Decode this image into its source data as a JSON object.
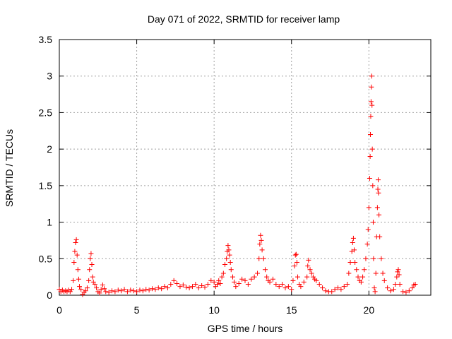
{
  "chart_data": {
    "type": "scatter",
    "title": "Day 071 of 2022, SRMTID for receiver lamp",
    "xlabel": "GPS time / hours",
    "ylabel": "SRMTID / TECUs",
    "xlim": [
      0,
      24
    ],
    "ylim": [
      0,
      3.5
    ],
    "xticks": [
      0,
      5,
      10,
      15,
      20
    ],
    "xtick_labels": [
      "0",
      "5",
      "10",
      "15",
      "20"
    ],
    "yticks": [
      0,
      0.5,
      1,
      1.5,
      2,
      2.5,
      3,
      3.5
    ],
    "ytick_labels": [
      "0",
      "0.5",
      "1",
      "1.5",
      "2",
      "2.5",
      "3",
      "3.5"
    ],
    "grid": true,
    "marker": "+",
    "series": [
      {
        "name": "SRMTID",
        "color": "#ff0000",
        "points": [
          [
            0.0,
            0.08
          ],
          [
            0.1,
            0.05
          ],
          [
            0.2,
            0.07
          ],
          [
            0.3,
            0.05
          ],
          [
            0.4,
            0.06
          ],
          [
            0.5,
            0.05
          ],
          [
            0.6,
            0.07
          ],
          [
            0.7,
            0.05
          ],
          [
            0.8,
            0.08
          ],
          [
            0.9,
            0.2
          ],
          [
            0.95,
            0.45
          ],
          [
            1.0,
            0.6
          ],
          [
            1.05,
            0.72
          ],
          [
            1.1,
            0.76
          ],
          [
            1.15,
            0.55
          ],
          [
            1.2,
            0.35
          ],
          [
            1.25,
            0.22
          ],
          [
            1.3,
            0.12
          ],
          [
            1.4,
            0.08
          ],
          [
            1.5,
            0.01
          ],
          [
            1.6,
            0.04
          ],
          [
            1.7,
            0.06
          ],
          [
            1.8,
            0.1
          ],
          [
            1.9,
            0.2
          ],
          [
            1.95,
            0.35
          ],
          [
            2.0,
            0.5
          ],
          [
            2.05,
            0.57
          ],
          [
            2.1,
            0.42
          ],
          [
            2.15,
            0.25
          ],
          [
            2.2,
            0.18
          ],
          [
            2.3,
            0.15
          ],
          [
            2.4,
            0.1
          ],
          [
            2.5,
            0.05
          ],
          [
            2.6,
            0.03
          ],
          [
            2.7,
            0.08
          ],
          [
            2.8,
            0.14
          ],
          [
            2.9,
            0.09
          ],
          [
            3.0,
            0.05
          ],
          [
            3.2,
            0.04
          ],
          [
            3.4,
            0.06
          ],
          [
            3.6,
            0.05
          ],
          [
            3.8,
            0.07
          ],
          [
            4.0,
            0.06
          ],
          [
            4.2,
            0.08
          ],
          [
            4.4,
            0.05
          ],
          [
            4.6,
            0.07
          ],
          [
            4.8,
            0.06
          ],
          [
            5.0,
            0.05
          ],
          [
            5.2,
            0.07
          ],
          [
            5.4,
            0.06
          ],
          [
            5.6,
            0.08
          ],
          [
            5.8,
            0.07
          ],
          [
            6.0,
            0.09
          ],
          [
            6.2,
            0.08
          ],
          [
            6.4,
            0.1
          ],
          [
            6.6,
            0.09
          ],
          [
            6.8,
            0.12
          ],
          [
            7.0,
            0.1
          ],
          [
            7.2,
            0.15
          ],
          [
            7.4,
            0.2
          ],
          [
            7.6,
            0.16
          ],
          [
            7.8,
            0.12
          ],
          [
            8.0,
            0.14
          ],
          [
            8.2,
            0.11
          ],
          [
            8.4,
            0.1
          ],
          [
            8.6,
            0.12
          ],
          [
            8.8,
            0.15
          ],
          [
            9.0,
            0.1
          ],
          [
            9.2,
            0.13
          ],
          [
            9.4,
            0.11
          ],
          [
            9.6,
            0.15
          ],
          [
            9.8,
            0.2
          ],
          [
            10.0,
            0.18
          ],
          [
            10.1,
            0.12
          ],
          [
            10.2,
            0.15
          ],
          [
            10.3,
            0.2
          ],
          [
            10.4,
            0.16
          ],
          [
            10.5,
            0.25
          ],
          [
            10.6,
            0.3
          ],
          [
            10.7,
            0.42
          ],
          [
            10.8,
            0.5
          ],
          [
            10.85,
            0.6
          ],
          [
            10.9,
            0.68
          ],
          [
            10.95,
            0.62
          ],
          [
            11.0,
            0.55
          ],
          [
            11.05,
            0.45
          ],
          [
            11.1,
            0.35
          ],
          [
            11.2,
            0.25
          ],
          [
            11.3,
            0.18
          ],
          [
            11.4,
            0.12
          ],
          [
            11.6,
            0.16
          ],
          [
            11.8,
            0.22
          ],
          [
            12.0,
            0.2
          ],
          [
            12.2,
            0.15
          ],
          [
            12.4,
            0.22
          ],
          [
            12.6,
            0.25
          ],
          [
            12.8,
            0.3
          ],
          [
            12.9,
            0.5
          ],
          [
            12.95,
            0.7
          ],
          [
            13.0,
            0.82
          ],
          [
            13.05,
            0.75
          ],
          [
            13.1,
            0.62
          ],
          [
            13.2,
            0.5
          ],
          [
            13.3,
            0.35
          ],
          [
            13.4,
            0.25
          ],
          [
            13.5,
            0.2
          ],
          [
            13.6,
            0.18
          ],
          [
            13.8,
            0.22
          ],
          [
            14.0,
            0.15
          ],
          [
            14.2,
            0.12
          ],
          [
            14.4,
            0.15
          ],
          [
            14.6,
            0.1
          ],
          [
            14.8,
            0.12
          ],
          [
            15.0,
            0.08
          ],
          [
            15.1,
            0.2
          ],
          [
            15.2,
            0.4
          ],
          [
            15.25,
            0.55
          ],
          [
            15.3,
            0.56
          ],
          [
            15.35,
            0.45
          ],
          [
            15.4,
            0.25
          ],
          [
            15.5,
            0.15
          ],
          [
            15.6,
            0.12
          ],
          [
            15.8,
            0.18
          ],
          [
            16.0,
            0.25
          ],
          [
            16.05,
            0.4
          ],
          [
            16.1,
            0.48
          ],
          [
            16.2,
            0.35
          ],
          [
            16.3,
            0.3
          ],
          [
            16.4,
            0.25
          ],
          [
            16.5,
            0.22
          ],
          [
            16.6,
            0.2
          ],
          [
            16.8,
            0.15
          ],
          [
            17.0,
            0.1
          ],
          [
            17.2,
            0.06
          ],
          [
            17.4,
            0.05
          ],
          [
            17.6,
            0.05
          ],
          [
            17.8,
            0.08
          ],
          [
            18.0,
            0.1
          ],
          [
            18.2,
            0.08
          ],
          [
            18.4,
            0.12
          ],
          [
            18.6,
            0.15
          ],
          [
            18.7,
            0.3
          ],
          [
            18.8,
            0.45
          ],
          [
            18.9,
            0.6
          ],
          [
            18.95,
            0.72
          ],
          [
            19.0,
            0.78
          ],
          [
            19.05,
            0.62
          ],
          [
            19.1,
            0.45
          ],
          [
            19.2,
            0.35
          ],
          [
            19.3,
            0.25
          ],
          [
            19.4,
            0.2
          ],
          [
            19.5,
            0.18
          ],
          [
            19.6,
            0.25
          ],
          [
            19.7,
            0.35
          ],
          [
            19.8,
            0.5
          ],
          [
            19.9,
            0.7
          ],
          [
            19.95,
            0.9
          ],
          [
            20.0,
            1.2
          ],
          [
            20.05,
            1.6
          ],
          [
            20.08,
            1.9
          ],
          [
            20.1,
            2.2
          ],
          [
            20.12,
            2.45
          ],
          [
            20.14,
            2.65
          ],
          [
            20.16,
            2.85
          ],
          [
            20.18,
            3.0
          ],
          [
            20.2,
            2.6
          ],
          [
            20.22,
            2.0
          ],
          [
            20.25,
            1.5
          ],
          [
            20.28,
            1.0
          ],
          [
            20.3,
            0.5
          ],
          [
            20.35,
            0.1
          ],
          [
            20.4,
            0.05
          ],
          [
            20.45,
            0.3
          ],
          [
            20.5,
            0.8
          ],
          [
            20.55,
            1.2
          ],
          [
            20.58,
            1.45
          ],
          [
            20.6,
            1.58
          ],
          [
            20.62,
            1.4
          ],
          [
            20.65,
            1.1
          ],
          [
            20.7,
            0.8
          ],
          [
            20.8,
            0.5
          ],
          [
            20.9,
            0.3
          ],
          [
            21.0,
            0.2
          ],
          [
            21.2,
            0.1
          ],
          [
            21.4,
            0.06
          ],
          [
            21.6,
            0.08
          ],
          [
            21.7,
            0.15
          ],
          [
            21.8,
            0.25
          ],
          [
            21.85,
            0.32
          ],
          [
            21.9,
            0.35
          ],
          [
            21.95,
            0.28
          ],
          [
            22.0,
            0.15
          ],
          [
            22.2,
            0.05
          ],
          [
            22.4,
            0.04
          ],
          [
            22.6,
            0.06
          ],
          [
            22.8,
            0.1
          ],
          [
            22.9,
            0.14
          ],
          [
            23.0,
            0.15
          ]
        ]
      }
    ]
  }
}
